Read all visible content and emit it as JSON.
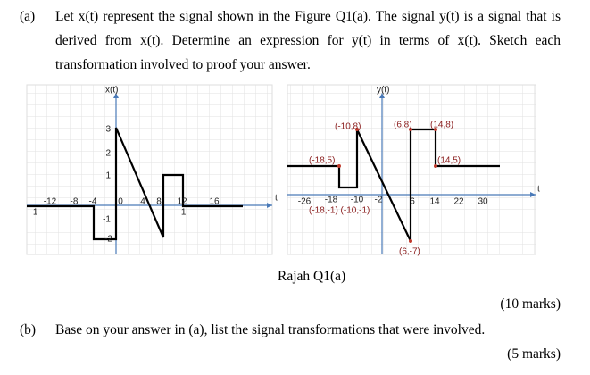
{
  "question_a": {
    "label": "(a)",
    "lines": [
      "Let x(t) represent the signal shown in the Figure Q1(a). The signal y(t) is a signal that is",
      "derived from x(t). Determine an expression for y(t) in terms of x(t). Sketch each",
      "transformation involved to proof your answer."
    ],
    "marks": "(10 marks)"
  },
  "figure_left": {
    "axis_label": "x(t)",
    "t_label": "t",
    "y_ticks": [
      "3",
      "2",
      "1",
      "-1",
      "-2"
    ],
    "x_ticks": [
      "-12",
      "-8",
      "-4",
      "0",
      "4",
      "8",
      "12",
      "16"
    ],
    "extra_labels": [
      "-1",
      "-1"
    ]
  },
  "figure_right": {
    "axis_label": "y(t)",
    "t_label": "t",
    "x_ticks": [
      "-26",
      "-18",
      "-10",
      "-2",
      "6",
      "14",
      "22",
      "30"
    ],
    "points": [
      "(-10,8)",
      "(6,8)",
      "(14,8)",
      "(-18,5)",
      "(14,5)",
      "(-18,-1) (-10,-1)",
      "(6,-7)"
    ]
  },
  "caption": "Rajah Q1(a)",
  "question_b": {
    "label": "(b)",
    "text": "Base on your answer in (a), list the signal transformations that were involved.",
    "marks": "(5 marks)"
  }
}
